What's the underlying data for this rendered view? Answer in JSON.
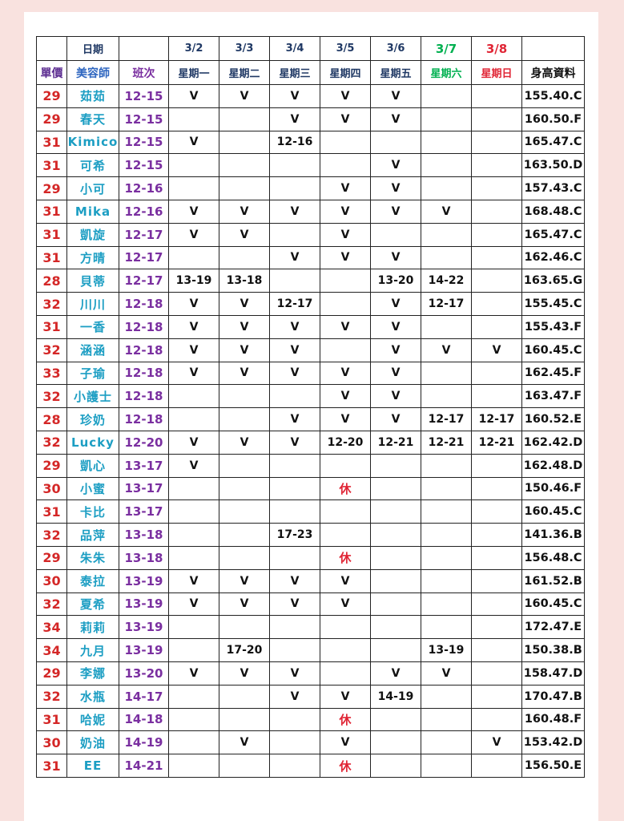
{
  "colors": {
    "page_pink": "#f9e2df",
    "panel_white": "#ffffff",
    "grid_black": "#222222",
    "weekday_navy": "#1f3864",
    "saturday_green": "#00b050",
    "sunday_red": "#e02535",
    "price_red": "#d42727",
    "name_teal": "#1c9ec3",
    "shift_purple": "#7a2fa0",
    "price_label_violet": "#5c2d91",
    "name_label_blue": "#2e66c0",
    "rest_red": "#e02535"
  },
  "table": {
    "date_label": "日期",
    "price_label": "單價",
    "beautician_label": "美容師",
    "shift_label": "班次",
    "height_label": "身高資料",
    "rest_text": "休",
    "days": [
      {
        "date": "3/2",
        "weekday": "星期一",
        "type": "weekday"
      },
      {
        "date": "3/3",
        "weekday": "星期二",
        "type": "weekday"
      },
      {
        "date": "3/4",
        "weekday": "星期三",
        "type": "weekday"
      },
      {
        "date": "3/5",
        "weekday": "星期四",
        "type": "weekday"
      },
      {
        "date": "3/6",
        "weekday": "星期五",
        "type": "weekday"
      },
      {
        "date": "3/7",
        "weekday": "星期六",
        "type": "saturday"
      },
      {
        "date": "3/8",
        "weekday": "星期日",
        "type": "sunday"
      }
    ],
    "rows": [
      {
        "price": "29",
        "name": "茹茹",
        "shift": "12-15",
        "cells": [
          "V",
          "V",
          "V",
          "V",
          "V",
          "",
          ""
        ],
        "height": "155.40.C"
      },
      {
        "price": "29",
        "name": "春天",
        "shift": "12-15",
        "cells": [
          "",
          "",
          "V",
          "V",
          "V",
          "",
          ""
        ],
        "height": "160.50.F"
      },
      {
        "price": "31",
        "name": "Kimico",
        "shift": "12-15",
        "cells": [
          "V",
          "",
          "12-16",
          "",
          "",
          "",
          ""
        ],
        "height": "165.47.C"
      },
      {
        "price": "31",
        "name": "可希",
        "shift": "12-15",
        "cells": [
          "",
          "",
          "",
          "",
          "V",
          "",
          ""
        ],
        "height": "163.50.D"
      },
      {
        "price": "29",
        "name": "小可",
        "shift": "12-16",
        "cells": [
          "",
          "",
          "",
          "V",
          "V",
          "",
          ""
        ],
        "height": "157.43.C"
      },
      {
        "price": "31",
        "name": "Mika",
        "shift": "12-16",
        "cells": [
          "V",
          "V",
          "V",
          "V",
          "V",
          "V",
          ""
        ],
        "height": "168.48.C"
      },
      {
        "price": "31",
        "name": "凱旋",
        "shift": "12-17",
        "cells": [
          "V",
          "V",
          "",
          "V",
          "",
          "",
          ""
        ],
        "height": "165.47.C"
      },
      {
        "price": "31",
        "name": "方晴",
        "shift": "12-17",
        "cells": [
          "",
          "",
          "V",
          "V",
          "V",
          "",
          ""
        ],
        "height": "162.46.C"
      },
      {
        "price": "28",
        "name": "貝蒂",
        "shift": "12-17",
        "cells": [
          "13-19",
          "13-18",
          "",
          "",
          "13-20",
          "14-22",
          ""
        ],
        "height": "163.65.G"
      },
      {
        "price": "32",
        "name": "川川",
        "shift": "12-18",
        "cells": [
          "V",
          "V",
          "12-17",
          "",
          "V",
          "12-17",
          ""
        ],
        "height": "155.45.C"
      },
      {
        "price": "31",
        "name": "一香",
        "shift": "12-18",
        "cells": [
          "V",
          "V",
          "V",
          "V",
          "V",
          "",
          ""
        ],
        "height": "155.43.F"
      },
      {
        "price": "32",
        "name": "涵涵",
        "shift": "12-18",
        "cells": [
          "V",
          "V",
          "V",
          "",
          "V",
          "V",
          "V"
        ],
        "height": "160.45.C"
      },
      {
        "price": "33",
        "name": "子瑜",
        "shift": "12-18",
        "cells": [
          "V",
          "V",
          "V",
          "V",
          "V",
          "",
          ""
        ],
        "height": "162.45.F"
      },
      {
        "price": "32",
        "name": "小護士",
        "shift": "12-18",
        "cells": [
          "",
          "",
          "",
          "V",
          "V",
          "",
          ""
        ],
        "height": "163.47.F"
      },
      {
        "price": "28",
        "name": "珍奶",
        "shift": "12-18",
        "cells": [
          "",
          "",
          "V",
          "V",
          "V",
          "12-17",
          "12-17"
        ],
        "height": "160.52.E"
      },
      {
        "price": "32",
        "name": "Lucky",
        "shift": "12-20",
        "cells": [
          "V",
          "V",
          "V",
          "12-20",
          "12-21",
          "12-21",
          "12-21"
        ],
        "height": "162.42.D"
      },
      {
        "price": "29",
        "name": "凱心",
        "shift": "13-17",
        "cells": [
          "V",
          "",
          "",
          "",
          "",
          "",
          ""
        ],
        "height": "162.48.D"
      },
      {
        "price": "30",
        "name": "小蜜",
        "shift": "13-17",
        "cells": [
          "",
          "",
          "",
          "休",
          "",
          "",
          ""
        ],
        "height": "150.46.F"
      },
      {
        "price": "31",
        "name": "卡比",
        "shift": "13-17",
        "cells": [
          "",
          "",
          "",
          "",
          "",
          "",
          ""
        ],
        "height": "160.45.C"
      },
      {
        "price": "32",
        "name": "品萍",
        "shift": "13-18",
        "cells": [
          "",
          "",
          "17-23",
          "",
          "",
          "",
          ""
        ],
        "height": "141.36.B"
      },
      {
        "price": "29",
        "name": "朱朱",
        "shift": "13-18",
        "cells": [
          "",
          "",
          "",
          "休",
          "",
          "",
          ""
        ],
        "height": "156.48.C"
      },
      {
        "price": "30",
        "name": "泰拉",
        "shift": "13-19",
        "cells": [
          "V",
          "V",
          "V",
          "V",
          "",
          "",
          ""
        ],
        "height": "161.52.B"
      },
      {
        "price": "32",
        "name": "夏希",
        "shift": "13-19",
        "cells": [
          "V",
          "V",
          "V",
          "V",
          "",
          "",
          ""
        ],
        "height": "160.45.C"
      },
      {
        "price": "34",
        "name": "莉莉",
        "shift": "13-19",
        "cells": [
          "",
          "",
          "",
          "",
          "",
          "",
          ""
        ],
        "height": "172.47.E"
      },
      {
        "price": "34",
        "name": "九月",
        "shift": "13-19",
        "cells": [
          "",
          "17-20",
          "",
          "",
          "",
          "13-19",
          ""
        ],
        "height": "150.38.B"
      },
      {
        "price": "29",
        "name": "李娜",
        "shift": "13-20",
        "cells": [
          "V",
          "V",
          "V",
          "",
          "V",
          "V",
          ""
        ],
        "height": "158.47.D"
      },
      {
        "price": "32",
        "name": "水瓶",
        "shift": "14-17",
        "cells": [
          "",
          "",
          "V",
          "V",
          "14-19",
          "",
          ""
        ],
        "height": "170.47.B"
      },
      {
        "price": "31",
        "name": "哈妮",
        "shift": "14-18",
        "cells": [
          "",
          "",
          "",
          "休",
          "",
          "",
          ""
        ],
        "height": "160.48.F"
      },
      {
        "price": "30",
        "name": "奶油",
        "shift": "14-19",
        "cells": [
          "",
          "V",
          "",
          "V",
          "",
          "",
          "V"
        ],
        "height": "153.42.D"
      },
      {
        "price": "31",
        "name": "EE",
        "shift": "14-21",
        "cells": [
          "",
          "",
          "",
          "休",
          "",
          "",
          ""
        ],
        "height": "156.50.E"
      }
    ]
  }
}
